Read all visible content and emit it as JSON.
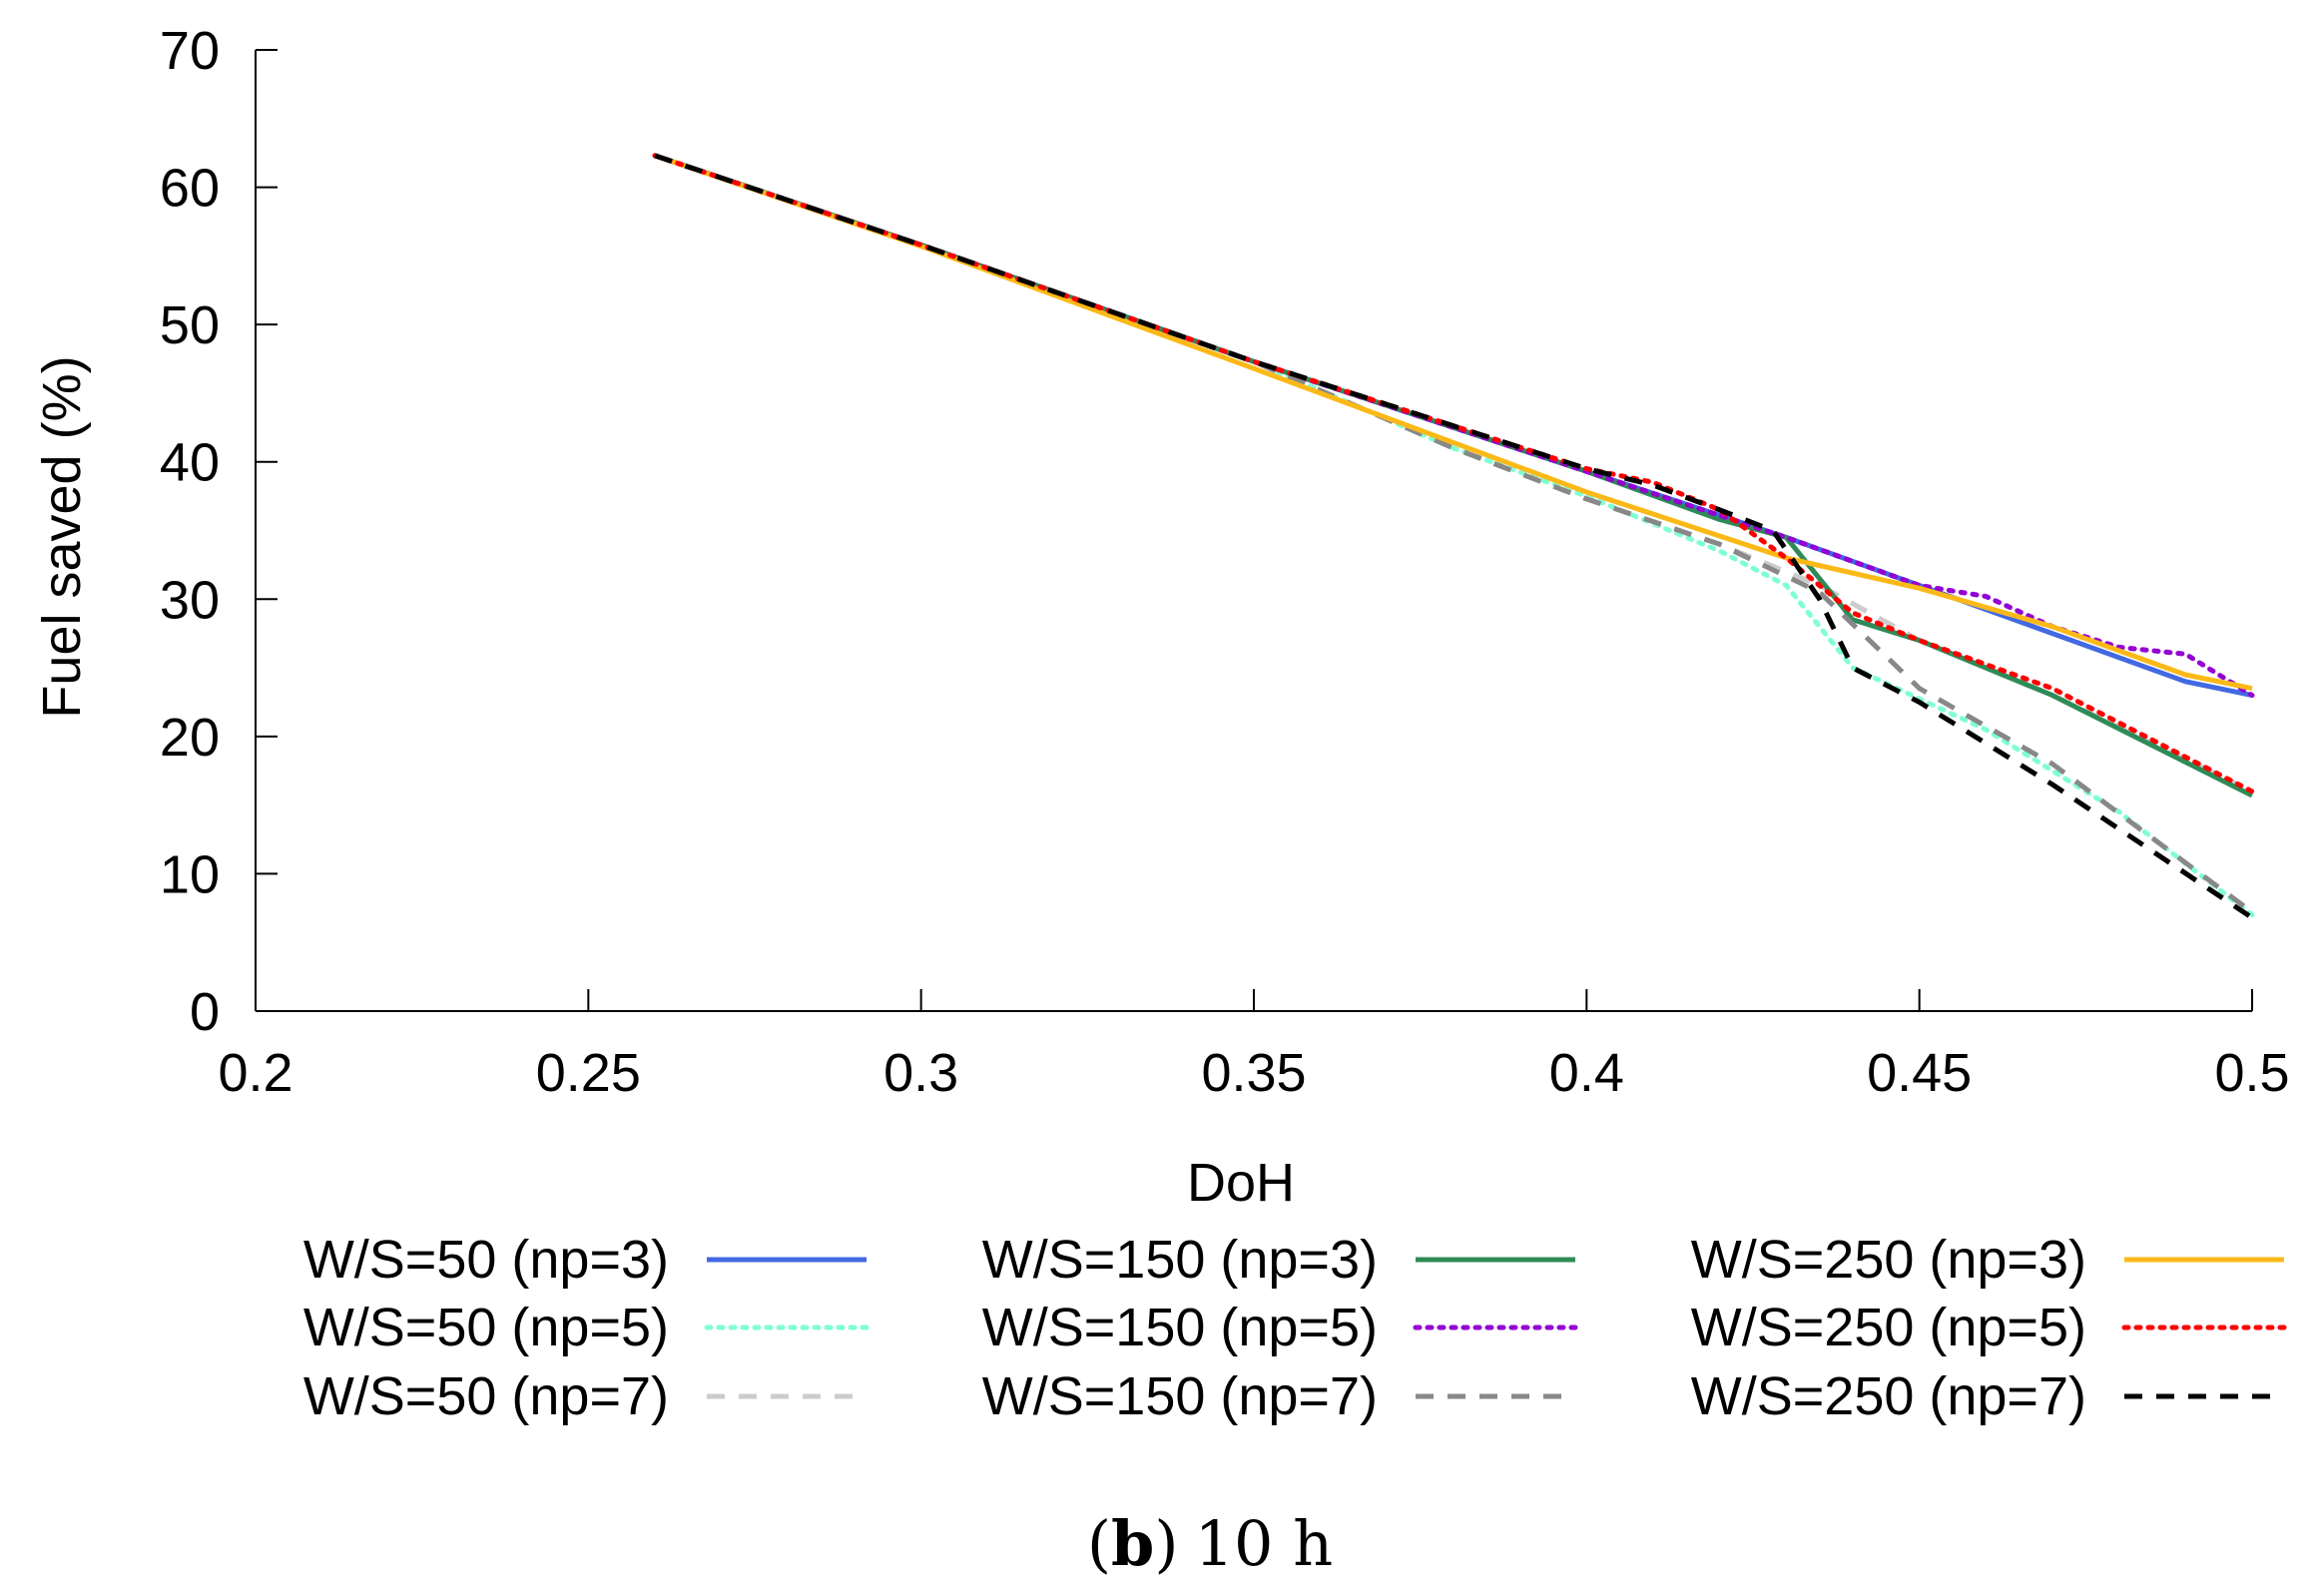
{
  "chart_data": {
    "type": "line",
    "title": "",
    "xlabel": "DoH",
    "ylabel": "Fuel saved (%)",
    "xlim": [
      0.2,
      0.5
    ],
    "ylim": [
      0,
      70
    ],
    "xticks": [
      0.2,
      0.25,
      0.3,
      0.35,
      0.4,
      0.45,
      0.5
    ],
    "yticks": [
      0,
      10,
      20,
      30,
      40,
      50,
      60,
      70
    ],
    "xtick_labels": [
      "0.2",
      "0.25",
      "0.3",
      "0.35",
      "0.4",
      "0.45",
      "0.5"
    ],
    "ytick_labels": [
      "0",
      "10",
      "20",
      "30",
      "40",
      "50",
      "60",
      "70"
    ],
    "grid": false,
    "legend_position": "bottom",
    "caption": {
      "letter": "b",
      "text": "10 h",
      "paren_open": "(",
      "paren_close": ")"
    },
    "series": [
      {
        "name": "W/S=50 (np=3)",
        "color": "#4169e1",
        "dash": "solid",
        "x": [
          0.26,
          0.3,
          0.35,
          0.4,
          0.43,
          0.45,
          0.47,
          0.49,
          0.5
        ],
        "y": [
          62.3,
          55.8,
          47.3,
          39.3,
          34.5,
          31.0,
          27.5,
          24.0,
          23.0
        ]
      },
      {
        "name": "W/S=50 (np=5)",
        "color": "#7fffd4",
        "dash": "dotted",
        "x": [
          0.26,
          0.3,
          0.35,
          0.38,
          0.4,
          0.42,
          0.43,
          0.44,
          0.46,
          0.48,
          0.5
        ],
        "y": [
          62.3,
          55.8,
          47.3,
          41.0,
          37.5,
          33.5,
          31.0,
          25.0,
          20.5,
          14.5,
          7.0
        ]
      },
      {
        "name": "W/S=50 (np=7)",
        "color": "#cccccc",
        "dash": "dashed",
        "x": [
          0.26,
          0.3,
          0.35,
          0.38,
          0.4,
          0.42,
          0.435,
          0.45,
          0.47,
          0.5
        ],
        "y": [
          62.3,
          55.8,
          47.3,
          41.0,
          37.3,
          34.0,
          31.0,
          27.0,
          23.0,
          16.0
        ]
      },
      {
        "name": "W/S=150 (np=3)",
        "color": "#2e8b57",
        "dash": "solid",
        "x": [
          0.26,
          0.3,
          0.35,
          0.4,
          0.42,
          0.43,
          0.44,
          0.45,
          0.47,
          0.5
        ],
        "y": [
          62.3,
          55.8,
          47.3,
          39.3,
          35.8,
          34.5,
          28.5,
          27.0,
          23.0,
          15.7
        ]
      },
      {
        "name": "W/S=150 (np=5)",
        "color": "#9400d3",
        "dash": "dotted",
        "x": [
          0.26,
          0.3,
          0.35,
          0.4,
          0.43,
          0.45,
          0.46,
          0.47,
          0.48,
          0.49,
          0.5
        ],
        "y": [
          62.3,
          55.8,
          47.3,
          39.3,
          34.5,
          31.0,
          30.2,
          28.0,
          26.5,
          26.0,
          23.0
        ]
      },
      {
        "name": "W/S=150 (np=7)",
        "color": "#888888",
        "dash": "dashed",
        "x": [
          0.26,
          0.3,
          0.35,
          0.38,
          0.4,
          0.42,
          0.435,
          0.45,
          0.47,
          0.5
        ],
        "y": [
          62.3,
          55.8,
          47.3,
          41.0,
          37.3,
          34.0,
          30.5,
          23.5,
          18.0,
          7.2
        ]
      },
      {
        "name": "W/S=250 (np=3)",
        "color": "#fbb917",
        "dash": "solid",
        "x": [
          0.26,
          0.3,
          0.35,
          0.4,
          0.43,
          0.45,
          0.47,
          0.49,
          0.5
        ],
        "y": [
          62.3,
          55.7,
          46.8,
          37.8,
          33.0,
          30.8,
          28.0,
          24.5,
          23.5
        ]
      },
      {
        "name": "W/S=250 (np=5)",
        "color": "#ff0000",
        "dash": "dotted",
        "x": [
          0.26,
          0.3,
          0.35,
          0.4,
          0.41,
          0.42,
          0.43,
          0.44,
          0.45,
          0.47,
          0.5
        ],
        "y": [
          62.3,
          55.8,
          47.3,
          39.5,
          38.5,
          36.5,
          33.0,
          29.0,
          27.0,
          23.5,
          16.0
        ]
      },
      {
        "name": "W/S=250 (np=7)",
        "color": "#000000",
        "dash": "dashed",
        "x": [
          0.26,
          0.3,
          0.35,
          0.4,
          0.41,
          0.42,
          0.428,
          0.435,
          0.44,
          0.45,
          0.47,
          0.5
        ],
        "y": [
          62.3,
          55.8,
          47.3,
          39.5,
          38.3,
          36.5,
          35.0,
          30.0,
          25.0,
          22.5,
          16.5,
          6.8
        ]
      }
    ]
  }
}
